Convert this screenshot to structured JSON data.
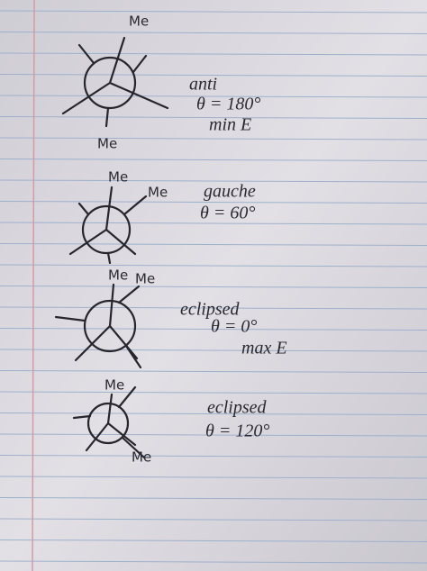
{
  "diagrams": [
    {
      "labels": [
        "Me",
        "Me"
      ],
      "notes": [
        "anti",
        "θ = 180°",
        "min E"
      ]
    },
    {
      "labels": [
        "Me",
        "Me"
      ],
      "notes": [
        "gauche",
        "θ = 60°"
      ]
    },
    {
      "labels": [
        "Me",
        "Me"
      ],
      "notes": [
        "eclipsed",
        "θ = 0°",
        "max E"
      ]
    },
    {
      "labels": [
        "Me",
        "Me"
      ],
      "notes": [
        "eclipsed",
        "θ = 120°"
      ]
    }
  ]
}
